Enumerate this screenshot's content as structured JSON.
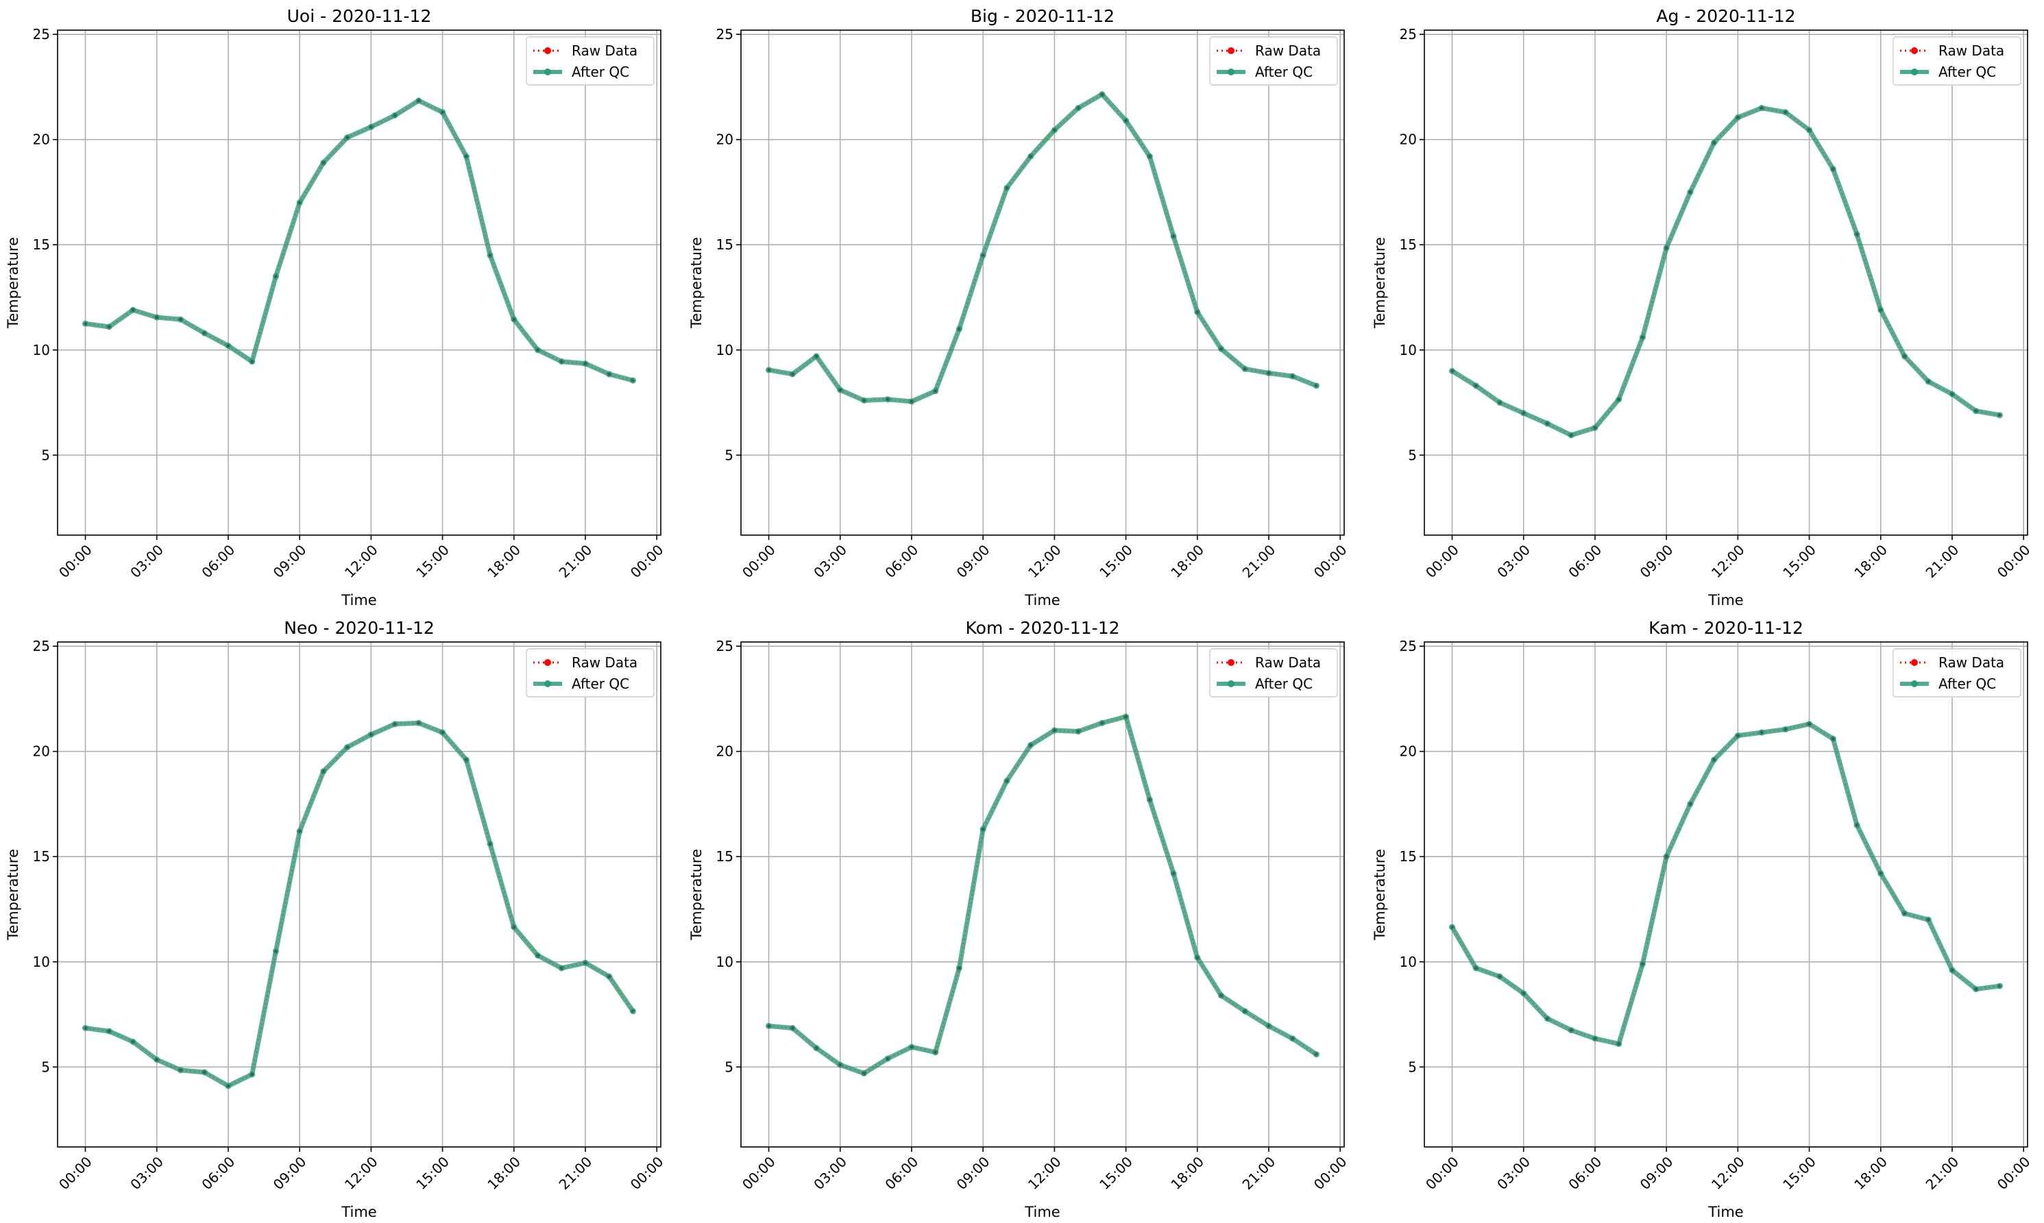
{
  "legend": {
    "raw_label": "Raw Data",
    "qc_label": "After QC"
  },
  "colors": {
    "raw": "#ff0000",
    "qc": "#2a9d74",
    "grid": "#b0b0b0",
    "axis": "#000000"
  },
  "chart_data": [
    {
      "type": "line",
      "title": "Uoi - 2020-11-12",
      "xlabel": "Time",
      "ylabel": "Temperature",
      "ylim": [
        1.2,
        25.2
      ],
      "yticks": [
        5,
        10,
        15,
        20,
        25
      ],
      "xlim": [
        "2020-11-11 22:50",
        "2020-11-13 00:10"
      ],
      "xticks": [
        "00:00",
        "03:00",
        "06:00",
        "09:00",
        "12:00",
        "15:00",
        "18:00",
        "21:00",
        "00:00"
      ],
      "grid": true,
      "legend_position": "top-right",
      "x": [
        "00:00",
        "01:00",
        "02:00",
        "03:00",
        "04:00",
        "05:00",
        "06:00",
        "07:00",
        "08:00",
        "09:00",
        "10:00",
        "11:00",
        "12:00",
        "13:00",
        "14:00",
        "15:00",
        "16:00",
        "17:00",
        "18:00",
        "19:00",
        "20:00",
        "21:00",
        "22:00",
        "23:00"
      ],
      "series": [
        {
          "name": "Raw Data",
          "values": [
            11.25,
            11.1,
            11.9,
            11.55,
            11.45,
            10.8,
            10.2,
            9.45,
            13.5,
            17.0,
            18.9,
            20.1,
            20.6,
            21.15,
            21.85,
            21.3,
            19.2,
            14.5,
            11.45,
            10.0,
            9.45,
            9.35,
            8.85,
            8.55
          ]
        },
        {
          "name": "After QC",
          "values": [
            11.25,
            11.1,
            11.9,
            11.55,
            11.45,
            10.8,
            10.2,
            9.45,
            13.5,
            17.0,
            18.9,
            20.1,
            20.6,
            21.15,
            21.85,
            21.3,
            19.2,
            14.5,
            11.45,
            10.0,
            9.45,
            9.35,
            8.85,
            8.55
          ]
        }
      ]
    },
    {
      "type": "line",
      "title": "Big - 2020-11-12",
      "xlabel": "Time",
      "ylabel": "Temperature",
      "ylim": [
        1.2,
        25.2
      ],
      "yticks": [
        5,
        10,
        15,
        20,
        25
      ],
      "xlim": [
        "2020-11-11 22:50",
        "2020-11-13 00:10"
      ],
      "xticks": [
        "00:00",
        "03:00",
        "06:00",
        "09:00",
        "12:00",
        "15:00",
        "18:00",
        "21:00",
        "00:00"
      ],
      "grid": true,
      "legend_position": "top-right",
      "x": [
        "00:00",
        "01:00",
        "02:00",
        "03:00",
        "04:00",
        "05:00",
        "06:00",
        "07:00",
        "08:00",
        "09:00",
        "10:00",
        "11:00",
        "12:00",
        "13:00",
        "14:00",
        "15:00",
        "16:00",
        "17:00",
        "18:00",
        "19:00",
        "20:00",
        "21:00",
        "22:00",
        "23:00"
      ],
      "series": [
        {
          "name": "Raw Data",
          "values": [
            9.05,
            8.85,
            9.7,
            8.1,
            7.6,
            7.65,
            7.55,
            8.05,
            11.0,
            14.5,
            17.7,
            19.2,
            20.45,
            21.5,
            22.15,
            20.9,
            19.2,
            15.4,
            11.8,
            10.05,
            9.1,
            8.9,
            8.75,
            8.3
          ]
        },
        {
          "name": "After QC",
          "values": [
            9.05,
            8.85,
            9.7,
            8.1,
            7.6,
            7.65,
            7.55,
            8.05,
            11.0,
            14.5,
            17.7,
            19.2,
            20.45,
            21.5,
            22.15,
            20.9,
            19.2,
            15.4,
            11.8,
            10.05,
            9.1,
            8.9,
            8.75,
            8.3
          ]
        }
      ]
    },
    {
      "type": "line",
      "title": "Ag - 2020-11-12",
      "xlabel": "Time",
      "ylabel": "Temperature",
      "ylim": [
        1.2,
        25.2
      ],
      "yticks": [
        5,
        10,
        15,
        20,
        25
      ],
      "xlim": [
        "2020-11-11 22:50",
        "2020-11-13 00:10"
      ],
      "xticks": [
        "00:00",
        "03:00",
        "06:00",
        "09:00",
        "12:00",
        "15:00",
        "18:00",
        "21:00",
        "00:00"
      ],
      "grid": true,
      "legend_position": "top-right",
      "x": [
        "00:00",
        "01:00",
        "02:00",
        "03:00",
        "04:00",
        "05:00",
        "06:00",
        "07:00",
        "08:00",
        "09:00",
        "10:00",
        "11:00",
        "12:00",
        "13:00",
        "14:00",
        "15:00",
        "16:00",
        "17:00",
        "18:00",
        "19:00",
        "20:00",
        "21:00",
        "22:00",
        "23:00"
      ],
      "series": [
        {
          "name": "Raw Data",
          "values": [
            9.0,
            8.3,
            7.5,
            7.0,
            6.5,
            5.95,
            6.3,
            7.65,
            10.6,
            14.85,
            17.5,
            19.85,
            21.05,
            21.5,
            21.3,
            20.45,
            18.6,
            15.5,
            11.9,
            9.7,
            8.5,
            7.9,
            7.1,
            6.9
          ]
        },
        {
          "name": "After QC",
          "values": [
            9.0,
            8.3,
            7.5,
            7.0,
            6.5,
            5.95,
            6.3,
            7.65,
            10.6,
            14.85,
            17.5,
            19.85,
            21.05,
            21.5,
            21.3,
            20.45,
            18.6,
            15.5,
            11.9,
            9.7,
            8.5,
            7.9,
            7.1,
            6.9
          ]
        }
      ]
    },
    {
      "type": "line",
      "title": "Neo - 2020-11-12",
      "xlabel": "Time",
      "ylabel": "Temperature",
      "ylim": [
        1.2,
        25.2
      ],
      "yticks": [
        5,
        10,
        15,
        20,
        25
      ],
      "xlim": [
        "2020-11-11 22:50",
        "2020-11-13 00:10"
      ],
      "xticks": [
        "00:00",
        "03:00",
        "06:00",
        "09:00",
        "12:00",
        "15:00",
        "18:00",
        "21:00",
        "00:00"
      ],
      "grid": true,
      "legend_position": "top-right",
      "x": [
        "00:00",
        "01:00",
        "02:00",
        "03:00",
        "04:00",
        "05:00",
        "06:00",
        "07:00",
        "08:00",
        "09:00",
        "10:00",
        "11:00",
        "12:00",
        "13:00",
        "14:00",
        "15:00",
        "16:00",
        "17:00",
        "18:00",
        "19:00",
        "20:00",
        "21:00",
        "22:00",
        "23:00"
      ],
      "series": [
        {
          "name": "Raw Data",
          "values": [
            6.85,
            6.7,
            6.2,
            5.35,
            4.85,
            4.75,
            4.1,
            4.65,
            10.5,
            16.2,
            19.05,
            20.2,
            20.8,
            21.3,
            21.35,
            20.9,
            19.6,
            15.6,
            11.65,
            10.3,
            9.7,
            9.95,
            9.3,
            7.65
          ]
        },
        {
          "name": "After QC",
          "values": [
            6.85,
            6.7,
            6.2,
            5.35,
            4.85,
            4.75,
            4.1,
            4.65,
            10.5,
            16.2,
            19.05,
            20.2,
            20.8,
            21.3,
            21.35,
            20.9,
            19.6,
            15.6,
            11.65,
            10.3,
            9.7,
            9.95,
            9.3,
            7.65
          ]
        }
      ]
    },
    {
      "type": "line",
      "title": "Kom - 2020-11-12",
      "xlabel": "Time",
      "ylabel": "Temperature",
      "ylim": [
        1.2,
        25.2
      ],
      "yticks": [
        5,
        10,
        15,
        20,
        25
      ],
      "xlim": [
        "2020-11-11 22:50",
        "2020-11-13 00:10"
      ],
      "xticks": [
        "00:00",
        "03:00",
        "06:00",
        "09:00",
        "12:00",
        "15:00",
        "18:00",
        "21:00",
        "00:00"
      ],
      "grid": true,
      "legend_position": "top-right",
      "x": [
        "00:00",
        "01:00",
        "02:00",
        "03:00",
        "04:00",
        "05:00",
        "06:00",
        "07:00",
        "08:00",
        "09:00",
        "10:00",
        "11:00",
        "12:00",
        "13:00",
        "14:00",
        "15:00",
        "16:00",
        "17:00",
        "18:00",
        "19:00",
        "20:00",
        "21:00",
        "22:00",
        "23:00"
      ],
      "series": [
        {
          "name": "Raw Data",
          "values": [
            6.95,
            6.85,
            5.9,
            5.1,
            4.7,
            5.4,
            5.95,
            5.7,
            9.7,
            16.3,
            18.6,
            20.3,
            21.0,
            20.95,
            21.35,
            21.65,
            17.7,
            14.2,
            10.2,
            8.4,
            7.65,
            6.95,
            6.35,
            5.6
          ]
        },
        {
          "name": "After QC",
          "values": [
            6.95,
            6.85,
            5.9,
            5.1,
            4.7,
            5.4,
            5.95,
            5.7,
            9.7,
            16.3,
            18.6,
            20.3,
            21.0,
            20.95,
            21.35,
            21.65,
            17.7,
            14.2,
            10.2,
            8.4,
            7.65,
            6.95,
            6.35,
            5.6
          ]
        }
      ]
    },
    {
      "type": "line",
      "title": "Kam - 2020-11-12",
      "xlabel": "Time",
      "ylabel": "Temperature",
      "ylim": [
        1.2,
        25.2
      ],
      "yticks": [
        5,
        10,
        15,
        20,
        25
      ],
      "xlim": [
        "2020-11-11 22:50",
        "2020-11-13 00:10"
      ],
      "xticks": [
        "00:00",
        "03:00",
        "06:00",
        "09:00",
        "12:00",
        "15:00",
        "18:00",
        "21:00",
        "00:00"
      ],
      "grid": true,
      "legend_position": "top-right",
      "x": [
        "00:00",
        "01:00",
        "02:00",
        "03:00",
        "04:00",
        "05:00",
        "06:00",
        "07:00",
        "08:00",
        "09:00",
        "10:00",
        "11:00",
        "12:00",
        "13:00",
        "14:00",
        "15:00",
        "16:00",
        "17:00",
        "18:00",
        "19:00",
        "20:00",
        "21:00",
        "22:00",
        "23:00"
      ],
      "series": [
        {
          "name": "Raw Data",
          "values": [
            11.65,
            9.7,
            9.3,
            8.5,
            7.3,
            6.75,
            6.35,
            6.1,
            9.9,
            15.0,
            17.5,
            19.6,
            20.75,
            20.9,
            21.05,
            21.3,
            20.6,
            16.5,
            14.2,
            12.3,
            12.0,
            9.6,
            8.7,
            8.85
          ]
        },
        {
          "name": "After QC",
          "values": [
            11.65,
            9.7,
            9.3,
            8.5,
            7.3,
            6.75,
            6.35,
            6.1,
            9.9,
            15.0,
            17.5,
            19.6,
            20.75,
            20.9,
            21.05,
            21.3,
            20.6,
            16.5,
            14.2,
            12.3,
            12.0,
            9.6,
            8.7,
            8.85
          ]
        }
      ]
    }
  ]
}
